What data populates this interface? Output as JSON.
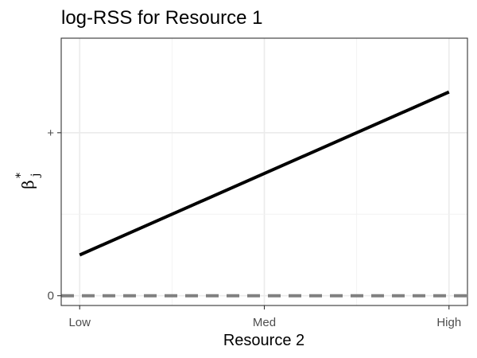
{
  "chart_data": {
    "type": "line",
    "title": "log-RSS for Resource 1",
    "xlabel": "Resource 2",
    "ylabel": {
      "symbol": "β",
      "superscript": "*",
      "subscript": "j"
    },
    "x_categories": [
      "Low",
      "Med",
      "High"
    ],
    "y_ticks": [
      {
        "value": 0,
        "label": "0"
      },
      {
        "value": 1,
        "label": "+"
      }
    ],
    "ylim": [
      -0.06,
      1.58
    ],
    "grid": true,
    "series": [
      {
        "style": "solid",
        "color": "#000000",
        "x": [
          0,
          2
        ],
        "y": [
          0.25,
          1.25
        ]
      }
    ],
    "reference_line": {
      "y": 0,
      "style": "dashed",
      "color": "#808080"
    }
  }
}
